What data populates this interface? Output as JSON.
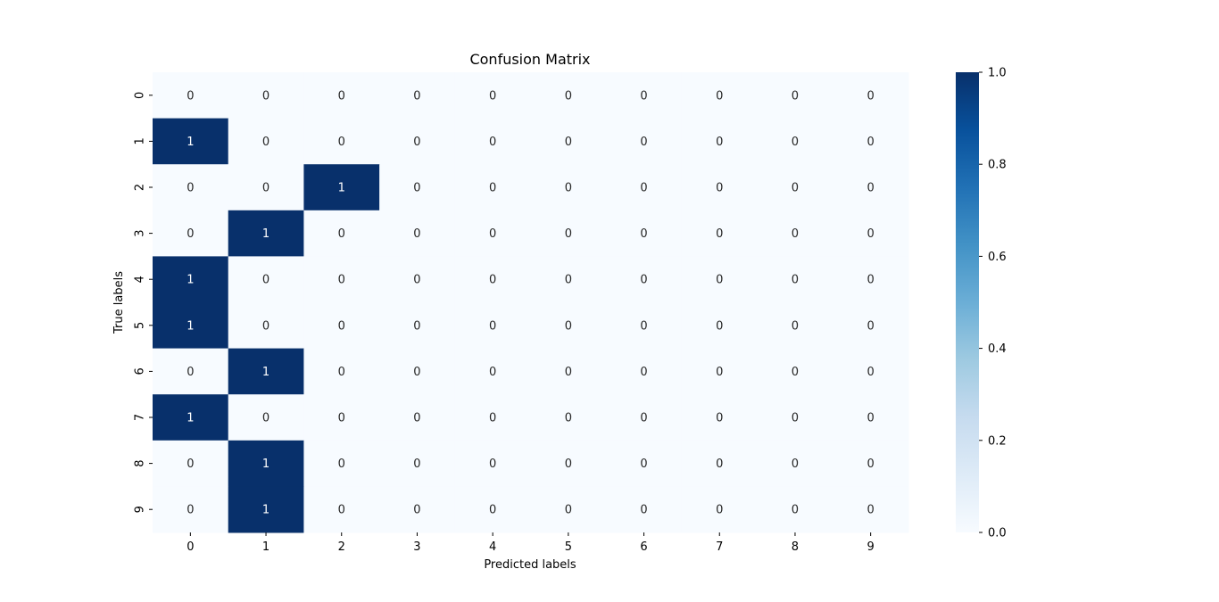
{
  "chart_data": {
    "type": "heatmap",
    "title": "Confusion Matrix",
    "xlabel": "Predicted labels",
    "ylabel": "True labels",
    "x_categories": [
      "0",
      "1",
      "2",
      "3",
      "4",
      "5",
      "6",
      "7",
      "8",
      "9"
    ],
    "y_categories": [
      "0",
      "1",
      "2",
      "3",
      "4",
      "5",
      "6",
      "7",
      "8",
      "9"
    ],
    "matrix": [
      [
        0,
        0,
        0,
        0,
        0,
        0,
        0,
        0,
        0,
        0
      ],
      [
        1,
        0,
        0,
        0,
        0,
        0,
        0,
        0,
        0,
        0
      ],
      [
        0,
        0,
        1,
        0,
        0,
        0,
        0,
        0,
        0,
        0
      ],
      [
        0,
        1,
        0,
        0,
        0,
        0,
        0,
        0,
        0,
        0
      ],
      [
        1,
        0,
        0,
        0,
        0,
        0,
        0,
        0,
        0,
        0
      ],
      [
        1,
        0,
        0,
        0,
        0,
        0,
        0,
        0,
        0,
        0
      ],
      [
        0,
        1,
        0,
        0,
        0,
        0,
        0,
        0,
        0,
        0
      ],
      [
        1,
        0,
        0,
        0,
        0,
        0,
        0,
        0,
        0,
        0
      ],
      [
        0,
        1,
        0,
        0,
        0,
        0,
        0,
        0,
        0,
        0
      ],
      [
        0,
        1,
        0,
        0,
        0,
        0,
        0,
        0,
        0,
        0
      ]
    ],
    "value_range": [
      0,
      1
    ],
    "colormap": "Blues",
    "low_color": "#f7fbff",
    "high_color": "#08306b",
    "colorbar": {
      "ticks": [
        "0.0",
        "0.2",
        "0.4",
        "0.6",
        "0.8",
        "1.0"
      ],
      "tick_values": [
        0,
        0.2,
        0.4,
        0.6,
        0.8,
        1.0
      ]
    }
  }
}
